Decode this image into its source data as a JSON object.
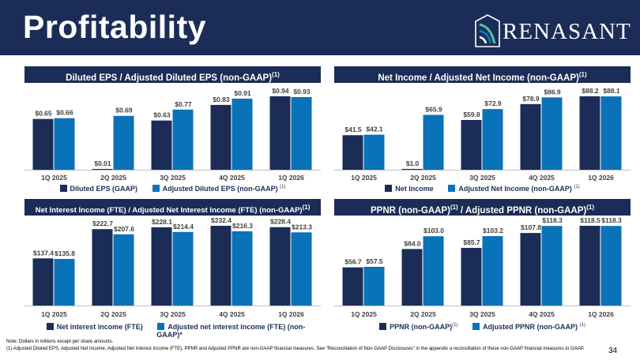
{
  "page": {
    "title": "Profitability",
    "logo_text": "RENASANT",
    "note": "Note: Dollars in millions except per share amounts.",
    "footnote": "(1)     Adjusted Diluted EPS, Adjusted Net Income, Adjusted Net Interest Income (FTE), PPNR and Adjusted PPNR are non-GAAP financial measures. See “Reconciliation of Non-GAAP Disclosures” in the appendix a reconciliation of these non-GAAP financial measures to GAAP.",
    "page_number": "34"
  },
  "colors": {
    "dark": "#1b2d57",
    "light": "#0a72b8",
    "panel_header": "#1b2d57"
  },
  "panels": [
    {
      "title": "Diluted EPS / Adjusted Diluted EPS (non-GAAP)",
      "sup": "(1)"
    },
    {
      "title": "Net Income / Adjusted Net Income (non-GAAP)",
      "sup": "(1)"
    },
    {
      "title": "Net Interest Income (FTE) / Adjusted Net Interest Income (FTE) (non-GAAP)",
      "sup": "(1)"
    },
    {
      "title": "PPNR (non-GAAP)",
      "sup": "(1)",
      "title2": " / Adjusted PPNR (non-GAAP)",
      "sup2": "(1)"
    }
  ],
  "legends": [
    {
      "a": "Diluted EPS (GAAP)",
      "b": "Adjusted Diluted EPS (non-GAAP)",
      "b_sup": "(1)"
    },
    {
      "a": "Net Income",
      "b": "Adjusted Net Income (non-GAAP)",
      "b_sup": "(1)"
    },
    {
      "a": "Net interest income (FTE)",
      "b": "Adjusted net interest income (FTE) (non-GAAP)*",
      "b_sup": ""
    },
    {
      "a": "PPNR (non-GAAP)",
      "a_sup": "(1)",
      "b": "Adjusted PPNR (non-GAAP)",
      "b_sup": "(1)"
    }
  ],
  "chart_data": [
    {
      "type": "bar",
      "categories": [
        "1Q 2025",
        "2Q 2025",
        "3Q 2025",
        "4Q 2025",
        "1Q 2026"
      ],
      "series": [
        {
          "name": "Diluted EPS (GAAP)",
          "values": [
            0.65,
            0.01,
            0.63,
            0.83,
            0.94
          ],
          "labels": [
            "$0.65",
            "$0.01",
            "$0.63",
            "$0.83",
            "$0.94"
          ]
        },
        {
          "name": "Adjusted Diluted EPS (non-GAAP)",
          "values": [
            0.66,
            0.69,
            0.77,
            0.91,
            0.93
          ],
          "labels": [
            "$0.66",
            "$0.69",
            "$0.77",
            "$0.91",
            "$0.93"
          ]
        }
      ],
      "ylim": [
        0,
        0.94
      ]
    },
    {
      "type": "bar",
      "categories": [
        "1Q 2025",
        "2Q 2025",
        "3Q 2025",
        "4Q 2025",
        "1Q 2026"
      ],
      "series": [
        {
          "name": "Net Income",
          "values": [
            41.5,
            1.0,
            59.8,
            78.9,
            88.2
          ],
          "labels": [
            "$41.5",
            "$1.0",
            "$59.8",
            "$78.9",
            "$88.2"
          ]
        },
        {
          "name": "Adjusted Net Income (non-GAAP)",
          "values": [
            42.1,
            65.9,
            72.9,
            86.9,
            88.1
          ],
          "labels": [
            "$42.1",
            "$65.9",
            "$72.9",
            "$86.9",
            "$88.1"
          ]
        }
      ],
      "ylim": [
        0,
        88.2
      ]
    },
    {
      "type": "bar",
      "categories": [
        "1Q 2025",
        "2Q 2025",
        "3Q 2025",
        "4Q 2025",
        "1Q 2026"
      ],
      "series": [
        {
          "name": "Net interest income (FTE)",
          "values": [
            137.4,
            222.7,
            228.1,
            232.4,
            228.4
          ],
          "labels": [
            "$137.4",
            "$222.7",
            "$228.1",
            "$232.4",
            "$228.4"
          ]
        },
        {
          "name": "Adjusted net interest income (FTE) (non-GAAP)*",
          "values": [
            135.8,
            207.6,
            214.4,
            216.3,
            213.3
          ],
          "labels": [
            "$135.8",
            "$207.6",
            "$214.4",
            "$216.3",
            "$213.3"
          ]
        }
      ],
      "ylim": [
        0,
        232.4
      ]
    },
    {
      "type": "bar",
      "categories": [
        "1Q 2025",
        "2Q 2025",
        "3Q 2025",
        "4Q 2025",
        "1Q 2026"
      ],
      "series": [
        {
          "name": "PPNR (non-GAAP)",
          "values": [
            56.7,
            84.0,
            85.7,
            107.8,
            118.5
          ],
          "labels": [
            "$56.7",
            "$84.0",
            "$85.7",
            "$107.8",
            "$118.5"
          ]
        },
        {
          "name": "Adjusted PPNR (non-GAAP)",
          "values": [
            57.5,
            103.0,
            103.2,
            118.3,
            118.3
          ],
          "labels": [
            "$57.5",
            "$103.0",
            "$103.2",
            "$118.3",
            "$118.3"
          ]
        }
      ],
      "ylim": [
        0,
        118.5
      ]
    }
  ]
}
